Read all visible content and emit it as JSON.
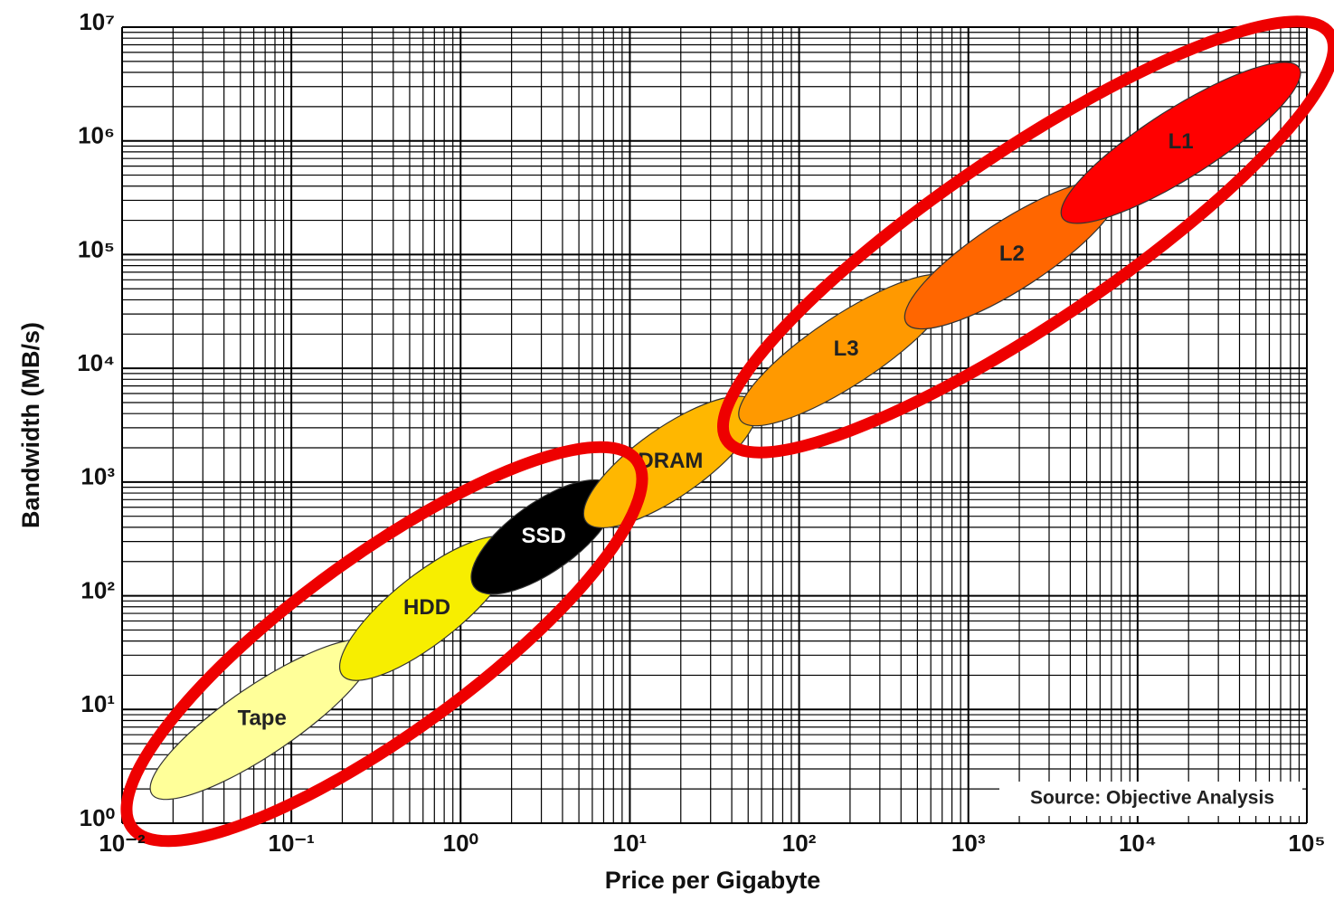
{
  "chart_data": {
    "type": "ellipse-range",
    "xlabel": "Price per Gigabyte",
    "ylabel": "Bandwidth (MB/s)",
    "annotation": "Source: Objective Analysis",
    "xscale": "log",
    "yscale": "log",
    "grid": true,
    "xlim": [
      0.01,
      100000
    ],
    "ylim": [
      1,
      10000000
    ],
    "xticks": [
      {
        "value": 0.01,
        "label": "10⁻²"
      },
      {
        "value": 0.1,
        "label": "10⁻¹"
      },
      {
        "value": 1,
        "label": "10⁰"
      },
      {
        "value": 10,
        "label": "10¹"
      },
      {
        "value": 100,
        "label": "10²"
      },
      {
        "value": 1000,
        "label": "10³"
      },
      {
        "value": 10000,
        "label": "10⁴"
      },
      {
        "value": 100000,
        "label": "10⁵"
      }
    ],
    "yticks": [
      {
        "value": 1,
        "label": "10⁰"
      },
      {
        "value": 10,
        "label": "10¹"
      },
      {
        "value": 100,
        "label": "10²"
      },
      {
        "value": 1000,
        "label": "10³"
      },
      {
        "value": 10000,
        "label": "10⁴"
      },
      {
        "value": 100000,
        "label": "10⁵"
      },
      {
        "value": 1000000,
        "label": "10⁶"
      },
      {
        "value": 10000000,
        "label": "10⁷"
      }
    ],
    "series": [
      {
        "name": "Tape",
        "color": "#ffff99",
        "x": [
          0.015,
          0.3
        ],
        "y": [
          1.8,
          37
        ]
      },
      {
        "name": "HDD",
        "color": "#f7ee00",
        "x": [
          0.2,
          2
        ],
        "y": [
          20,
          300
        ]
      },
      {
        "name": "SSD",
        "color": "#000000",
        "x": [
          1.2,
          8
        ],
        "y": [
          120,
          900
        ]
      },
      {
        "name": "DRAM",
        "color": "#ffb700",
        "x": [
          5.5,
          55
        ],
        "y": [
          450,
          5000
        ]
      },
      {
        "name": "L3",
        "color": "#ff9900",
        "x": [
          45,
          800
        ],
        "y": [
          3500,
          60000
        ]
      },
      {
        "name": "L2",
        "color": "#ff6600",
        "x": [
          430,
          7600
        ],
        "y": [
          25000,
          400000
        ]
      },
      {
        "name": "L1",
        "color": "#ff0000",
        "x": [
          3600,
          90000
        ],
        "y": [
          210000,
          4400000
        ]
      }
    ]
  }
}
